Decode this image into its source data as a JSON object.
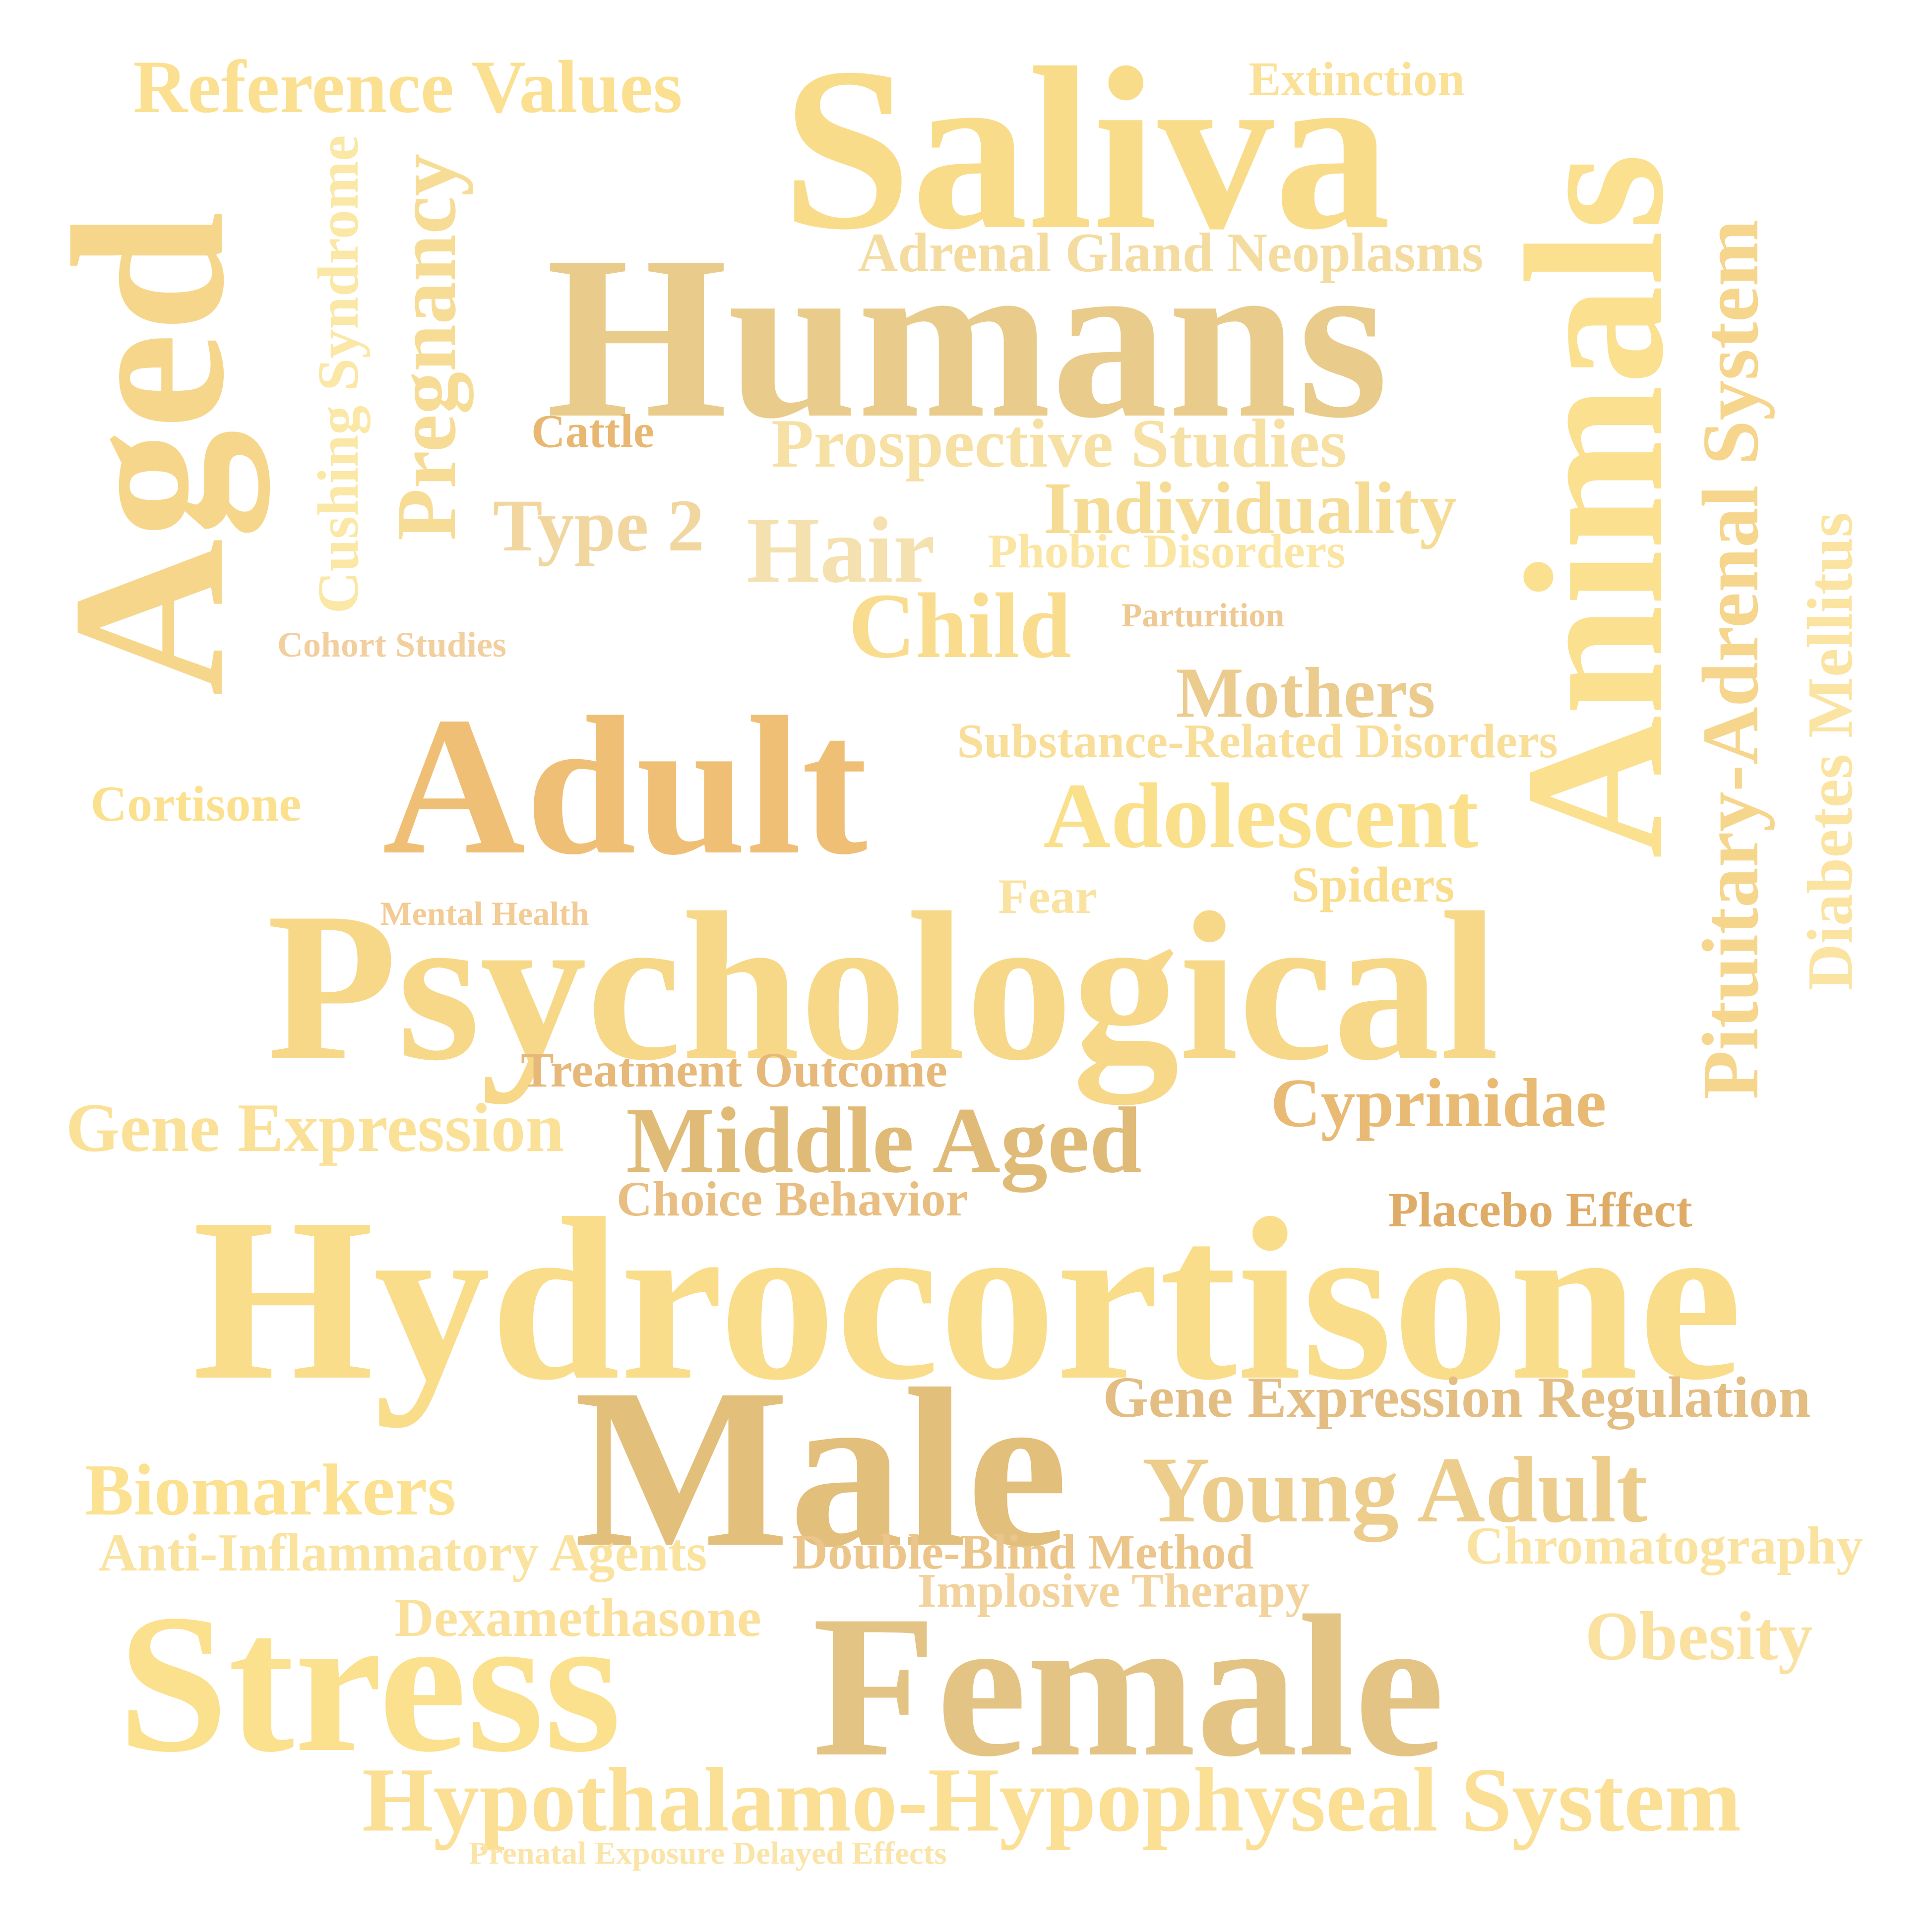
{
  "words": [
    {
      "text": "Reference Values",
      "color": "#FAE090"
    },
    {
      "text": "Extinction",
      "color": "#FAE197"
    },
    {
      "text": "Saliva",
      "color": "#F9DC8A"
    },
    {
      "text": "Animals",
      "color": "#FAE08F"
    },
    {
      "text": "Pituitary-Adrenal System",
      "color": "#F6D58C"
    },
    {
      "text": "Diabetes Mellitus",
      "color": "#FBE3A1"
    },
    {
      "text": "Aged",
      "color": "#F6D68B"
    },
    {
      "text": "Cushing Syndrome",
      "color": "#FBE7A6"
    },
    {
      "text": "Pregnancy",
      "color": "#F7DC96"
    },
    {
      "text": "Humans",
      "color": "#E9CC8B"
    },
    {
      "text": "Adrenal Gland Neoplasms",
      "color": "#F4DCA1"
    },
    {
      "text": "Cattle",
      "color": "#E8B872"
    },
    {
      "text": "Prospective Studies",
      "color": "#F7E0A4"
    },
    {
      "text": "Type 2",
      "color": "#F1D6A0"
    },
    {
      "text": "Hair",
      "color": "#F5E1AF"
    },
    {
      "text": "Individuality",
      "color": "#F5DB93"
    },
    {
      "text": "Phobic Disorders",
      "color": "#FBE5A3"
    },
    {
      "text": "Child",
      "color": "#F9DC8D"
    },
    {
      "text": "Parturition",
      "color": "#EFC993"
    },
    {
      "text": "Cohort Studies",
      "color": "#F2CF9E"
    },
    {
      "text": "Mothers",
      "color": "#EBCB8E"
    },
    {
      "text": "Substance-Related Disorders",
      "color": "#F9DE99"
    },
    {
      "text": "Adult",
      "color": "#EEBF75"
    },
    {
      "text": "Cortisone",
      "color": "#FBE08E"
    },
    {
      "text": "Adolescent",
      "color": "#FBE08B"
    },
    {
      "text": "Spiders",
      "color": "#F9DD8C"
    },
    {
      "text": "Fear",
      "color": "#FAE3A0"
    },
    {
      "text": "Mental Health",
      "color": "#F2CB95"
    },
    {
      "text": "Psychological",
      "color": "#F6D888"
    },
    {
      "text": "Treatment Outcome",
      "color": "#E6B97A"
    },
    {
      "text": "Cyprinidae",
      "color": "#E8BA73"
    },
    {
      "text": "Gene Expression",
      "color": "#FAE197"
    },
    {
      "text": "Middle Aged",
      "color": "#E0BB77"
    },
    {
      "text": "Choice Behavior",
      "color": "#E9BE82"
    },
    {
      "text": "Placebo Effect",
      "color": "#DFAC68"
    },
    {
      "text": "Hydrocortisone",
      "color": "#F9DD8A"
    },
    {
      "text": "Male",
      "color": "#E3BF7C"
    },
    {
      "text": "Gene Expression Regulation",
      "color": "#E3BD82"
    },
    {
      "text": "Biomarkers",
      "color": "#FBE190"
    },
    {
      "text": "Young Adult",
      "color": "#EDCD8C"
    },
    {
      "text": "Anti-Inflammatory Agents",
      "color": "#FAE39E"
    },
    {
      "text": "Double-Blind Method",
      "color": "#EBC58A"
    },
    {
      "text": "Chromatography",
      "color": "#FAE3A0"
    },
    {
      "text": "Implosive Therapy",
      "color": "#F2D39E"
    },
    {
      "text": "Dexamethasone",
      "color": "#FBE09B"
    },
    {
      "text": "Stress",
      "color": "#FBE08D"
    },
    {
      "text": "Female",
      "color": "#E4C485"
    },
    {
      "text": "Obesity",
      "color": "#FAE1A0"
    },
    {
      "text": "Hypothalamo-Hypophyseal System",
      "color": "#FADF95"
    },
    {
      "text": "Prenatal Exposure Delayed Effects",
      "color": "#FAE4A8"
    }
  ]
}
